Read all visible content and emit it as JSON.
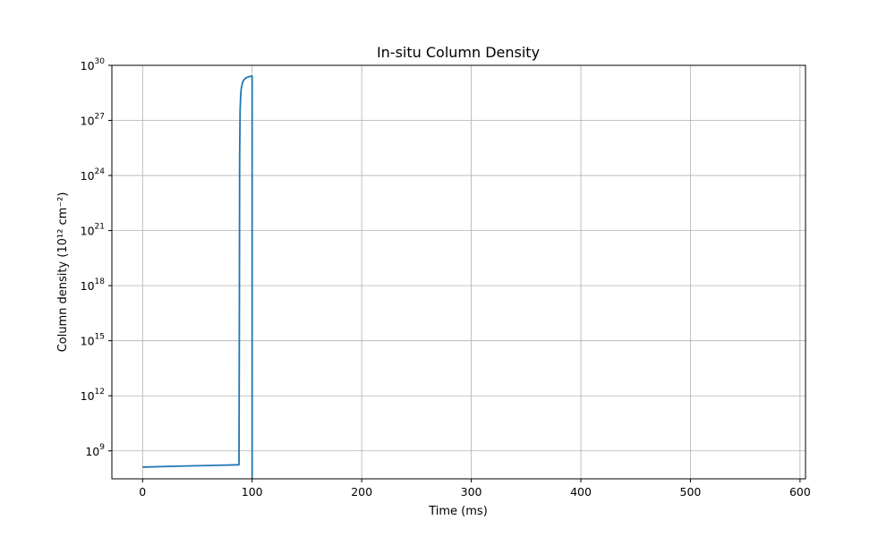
{
  "chart_data": {
    "type": "line",
    "title": "In-situ Column Density",
    "xlabel": "Time (ms)",
    "ylabel": "Column density (10¹² cm⁻²)",
    "x_scale": "linear",
    "y_scale": "log",
    "xlim": [
      -28,
      605
    ],
    "ylim": [
      30000000.0,
      1e+30
    ],
    "x_ticks": [
      0,
      100,
      200,
      300,
      400,
      500,
      600
    ],
    "x_tick_labels": [
      "0",
      "100",
      "200",
      "300",
      "400",
      "500",
      "600"
    ],
    "y_ticks": [
      1000000000.0,
      1000000000000.0,
      1000000000000000.0,
      1e+18,
      1e+21,
      1e+24,
      1e+27,
      1e+30
    ],
    "y_tick_exponents": [
      "9",
      "12",
      "15",
      "18",
      "21",
      "24",
      "27",
      "30"
    ],
    "y_tick_base": "10",
    "grid": true,
    "series": [
      {
        "name": "",
        "color": "#1f77b4",
        "x": [
          0,
          20,
          40,
          60,
          80,
          88,
          88.3,
          88.6,
          89,
          89.5,
          90,
          91,
          92,
          94,
          96,
          98,
          99.8,
          100,
          100
        ],
        "y": [
          130000000.0,
          140000000.0,
          150000000.0,
          160000000.0,
          170000000.0,
          175000000.0,
          1000000000000000.0,
          1e+25,
          3e+27,
          2e+28,
          5e+28,
          1e+29,
          1.5e+29,
          2e+29,
          2.3e+29,
          2.5e+29,
          2.6e+29,
          2.6e+29,
          10000000.0
        ]
      }
    ]
  }
}
